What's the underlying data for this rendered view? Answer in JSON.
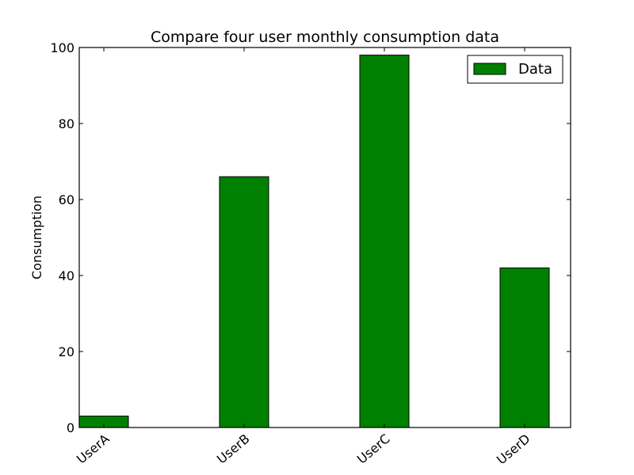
{
  "chart_data": {
    "type": "bar",
    "title": "Compare four user monthly consumption data",
    "xlabel": "",
    "ylabel": "Consumption",
    "categories": [
      "UserA",
      "UserB",
      "UserC",
      "UserD"
    ],
    "series": [
      {
        "name": "Data",
        "values": [
          3,
          66,
          98,
          42
        ],
        "color": "#008000"
      }
    ],
    "ylim": [
      0,
      100
    ],
    "yticks": [
      0,
      20,
      40,
      60,
      80,
      100
    ],
    "ytick_labels": [
      "0",
      "20",
      "40",
      "60",
      "80",
      "100"
    ],
    "xtick_rotation_deg": -40,
    "grid": false,
    "legend": {
      "position": "top-right",
      "entries": [
        "Data"
      ]
    }
  }
}
